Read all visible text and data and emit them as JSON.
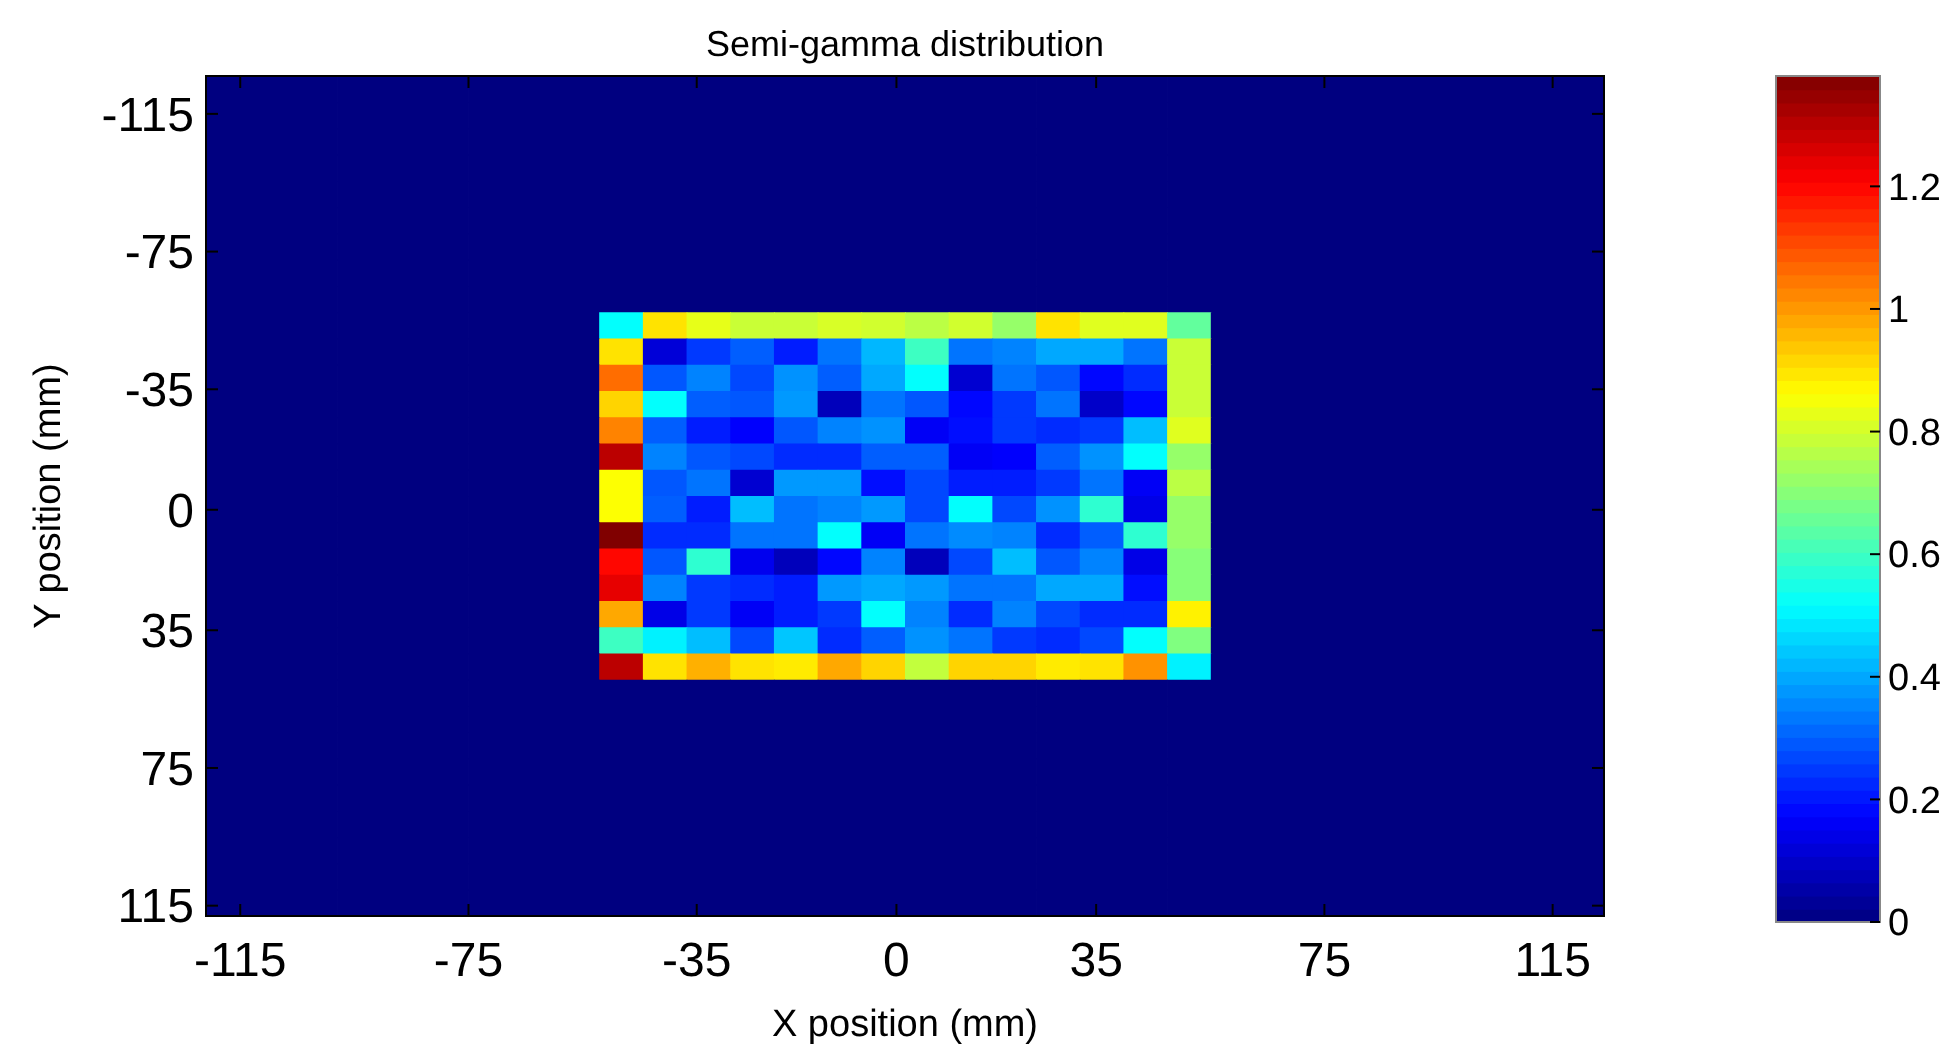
{
  "chart_data": {
    "type": "heatmap",
    "title": "Semi-gamma distribution",
    "xlabel": "X position (mm)",
    "ylabel": "Y position (mm)",
    "xlim": [
      -121,
      124
    ],
    "ylim": [
      118,
      -126
    ],
    "xticks": [
      -115,
      -75,
      -35,
      0,
      35,
      75,
      115
    ],
    "yticks": [
      -115,
      -75,
      -35,
      0,
      35,
      75,
      115
    ],
    "clim": [
      0,
      1.38
    ],
    "cticks": [
      0,
      0.2,
      0.4,
      0.6,
      0.8,
      1,
      1.2
    ],
    "cells": [
      [
        0,
        0,
        0,
        0,
        0,
        0,
        0,
        0,
        0,
        0,
        0,
        0,
        0,
        0,
        0,
        0,
        0,
        0,
        0,
        0,
        0,
        0,
        0,
        0,
        0,
        0,
        0,
        0,
        0,
        0,
        0,
        0
      ],
      [
        0,
        0,
        0,
        0,
        0,
        0,
        0,
        0,
        0,
        0,
        0,
        0,
        0,
        0,
        0,
        0,
        0,
        0,
        0,
        0,
        0,
        0,
        0,
        0,
        0,
        0,
        0,
        0,
        0,
        0,
        0,
        0
      ],
      [
        0,
        0,
        0,
        0,
        0,
        0,
        0,
        0,
        0,
        0,
        0,
        0,
        0,
        0,
        0,
        0,
        0,
        0,
        0,
        0,
        0,
        0,
        0,
        0,
        0,
        0,
        0,
        0,
        0,
        0,
        0,
        0
      ],
      [
        0,
        0,
        0,
        0,
        0,
        0,
        0,
        0,
        0,
        0,
        0,
        0,
        0,
        0,
        0,
        0,
        0,
        0,
        0,
        0,
        0,
        0,
        0,
        0,
        0,
        0,
        0,
        0,
        0,
        0,
        0,
        0
      ],
      [
        0,
        0,
        0,
        0,
        0,
        0,
        0,
        0,
        0,
        0,
        0,
        0,
        0,
        0,
        0,
        0,
        0,
        0,
        0,
        0,
        0,
        0,
        0,
        0,
        0,
        0,
        0,
        0,
        0,
        0,
        0,
        0
      ],
      [
        0,
        0,
        0,
        0,
        0,
        0,
        0,
        0,
        0,
        0,
        0,
        0,
        0,
        0,
        0,
        0,
        0,
        0,
        0,
        0,
        0,
        0,
        0,
        0,
        0,
        0,
        0,
        0,
        0,
        0,
        0,
        0
      ],
      [
        0,
        0,
        0,
        0,
        0,
        0,
        0,
        0,
        0,
        0,
        0,
        0,
        0,
        0,
        0,
        0,
        0,
        0,
        0,
        0,
        0,
        0,
        0,
        0,
        0,
        0,
        0,
        0,
        0,
        0,
        0,
        0
      ],
      [
        0,
        0,
        0,
        0,
        0,
        0,
        0,
        0,
        0,
        0,
        0,
        0,
        0,
        0,
        0,
        0,
        0,
        0,
        0,
        0,
        0,
        0,
        0,
        0,
        0,
        0,
        0,
        0,
        0,
        0,
        0,
        0
      ],
      [
        0,
        0,
        0,
        0,
        0,
        0,
        0,
        0,
        0,
        0,
        0,
        0,
        0,
        0,
        0,
        0,
        0,
        0,
        0,
        0,
        0,
        0,
        0,
        0,
        0,
        0,
        0,
        0,
        0,
        0,
        0,
        0
      ],
      [
        0,
        0,
        0,
        0,
        0,
        0,
        0,
        0,
        0,
        0.52,
        0.9,
        0.83,
        0.79,
        0.79,
        0.81,
        0.8,
        0.77,
        0.8,
        0.72,
        0.9,
        0.82,
        0.82,
        0.65,
        0,
        0,
        0,
        0,
        0,
        0,
        0,
        0,
        0
      ],
      [
        0,
        0,
        0,
        0,
        0,
        0,
        0,
        0,
        0,
        0.9,
        0.12,
        0.25,
        0.3,
        0.21,
        0.33,
        0.42,
        0.6,
        0.33,
        0.35,
        0.4,
        0.4,
        0.33,
        0.79,
        0,
        0,
        0,
        0,
        0,
        0,
        0,
        0,
        0
      ],
      [
        0,
        0,
        0,
        0,
        0,
        0,
        0,
        0,
        0,
        1.06,
        0.29,
        0.35,
        0.27,
        0.37,
        0.3,
        0.4,
        0.52,
        0.11,
        0.33,
        0.29,
        0.18,
        0.23,
        0.79,
        0,
        0,
        0,
        0,
        0,
        0,
        0,
        0,
        0
      ],
      [
        0,
        0,
        0,
        0,
        0,
        0,
        0,
        0,
        0,
        0.92,
        0.52,
        0.3,
        0.29,
        0.38,
        0.08,
        0.33,
        0.29,
        0.18,
        0.25,
        0.33,
        0.1,
        0.18,
        0.79,
        0,
        0,
        0,
        0,
        0,
        0,
        0,
        0,
        0
      ],
      [
        0,
        0,
        0,
        0,
        0,
        0,
        0,
        0,
        0,
        1.03,
        0.3,
        0.21,
        0.17,
        0.29,
        0.35,
        0.37,
        0.16,
        0.19,
        0.25,
        0.23,
        0.25,
        0.43,
        0.82,
        0,
        0,
        0,
        0,
        0,
        0,
        0,
        0,
        0
      ],
      [
        0,
        0,
        0,
        0,
        0,
        0,
        0,
        0,
        0,
        1.3,
        0.35,
        0.29,
        0.27,
        0.23,
        0.23,
        0.3,
        0.3,
        0.16,
        0.17,
        0.3,
        0.37,
        0.52,
        0.72,
        0,
        0,
        0,
        0,
        0,
        0,
        0,
        0,
        0
      ],
      [
        0,
        0,
        0,
        0,
        0,
        0,
        0,
        0,
        0,
        0.86,
        0.29,
        0.33,
        0.11,
        0.38,
        0.38,
        0.19,
        0.27,
        0.21,
        0.21,
        0.25,
        0.33,
        0.16,
        0.77,
        0,
        0,
        0,
        0,
        0,
        0,
        0,
        0,
        0
      ],
      [
        0,
        0,
        0,
        0,
        0,
        0,
        0,
        0,
        0,
        0.86,
        0.3,
        0.21,
        0.43,
        0.33,
        0.35,
        0.38,
        0.27,
        0.52,
        0.27,
        0.37,
        0.58,
        0.14,
        0.72,
        0,
        0,
        0,
        0,
        0,
        0,
        0,
        0,
        0
      ],
      [
        0,
        0,
        0,
        0,
        0,
        0,
        0,
        0,
        0,
        1.38,
        0.23,
        0.23,
        0.33,
        0.33,
        0.52,
        0.16,
        0.33,
        0.36,
        0.35,
        0.23,
        0.3,
        0.58,
        0.72,
        0,
        0,
        0,
        0,
        0,
        0,
        0,
        0,
        0
      ],
      [
        0,
        0,
        0,
        0,
        0,
        0,
        0,
        0,
        0,
        1.2,
        0.29,
        0.58,
        0.15,
        0.08,
        0.18,
        0.35,
        0.08,
        0.27,
        0.43,
        0.29,
        0.35,
        0.14,
        0.7,
        0,
        0,
        0,
        0,
        0,
        0,
        0,
        0,
        0
      ],
      [
        0,
        0,
        0,
        0,
        0,
        0,
        0,
        0,
        0,
        1.24,
        0.35,
        0.25,
        0.23,
        0.21,
        0.38,
        0.4,
        0.38,
        0.33,
        0.33,
        0.4,
        0.4,
        0.19,
        0.7,
        0,
        0,
        0,
        0,
        0,
        0,
        0,
        0,
        0
      ],
      [
        0,
        0,
        0,
        0,
        0,
        0,
        0,
        0,
        0,
        0.98,
        0.14,
        0.25,
        0.16,
        0.21,
        0.25,
        0.52,
        0.35,
        0.23,
        0.35,
        0.27,
        0.23,
        0.23,
        0.88,
        0,
        0,
        0,
        0,
        0,
        0,
        0,
        0,
        0
      ],
      [
        0,
        0,
        0,
        0,
        0,
        0,
        0,
        0,
        0,
        0.6,
        0.5,
        0.43,
        0.27,
        0.44,
        0.23,
        0.3,
        0.37,
        0.33,
        0.25,
        0.23,
        0.27,
        0.52,
        0.69,
        0,
        0,
        0,
        0,
        0,
        0,
        0,
        0,
        0
      ],
      [
        0,
        0,
        0,
        0,
        0,
        0,
        0,
        0,
        0,
        1.3,
        0.9,
        0.97,
        0.9,
        0.89,
        0.98,
        0.92,
        0.78,
        0.92,
        0.92,
        0.89,
        0.9,
        1.01,
        0.5,
        0,
        0,
        0,
        0,
        0,
        0,
        0,
        0,
        0
      ],
      [
        0,
        0,
        0,
        0,
        0,
        0,
        0,
        0,
        0,
        0,
        0,
        0,
        0,
        0,
        0,
        0,
        0,
        0,
        0,
        0,
        0,
        0,
        0,
        0,
        0,
        0,
        0,
        0,
        0,
        0,
        0,
        0
      ],
      [
        0,
        0,
        0,
        0,
        0,
        0,
        0,
        0,
        0,
        0,
        0,
        0,
        0,
        0,
        0,
        0,
        0,
        0,
        0,
        0,
        0,
        0,
        0,
        0,
        0,
        0,
        0,
        0,
        0,
        0,
        0,
        0
      ],
      [
        0,
        0,
        0,
        0,
        0,
        0,
        0,
        0,
        0,
        0,
        0,
        0,
        0,
        0,
        0,
        0,
        0,
        0,
        0,
        0,
        0,
        0,
        0,
        0,
        0,
        0,
        0,
        0,
        0,
        0,
        0,
        0
      ],
      [
        0,
        0,
        0,
        0,
        0,
        0,
        0,
        0,
        0,
        0,
        0,
        0,
        0,
        0,
        0,
        0,
        0,
        0,
        0,
        0,
        0,
        0,
        0,
        0,
        0,
        0,
        0,
        0,
        0,
        0,
        0,
        0
      ],
      [
        0,
        0,
        0,
        0,
        0,
        0,
        0,
        0,
        0,
        0,
        0,
        0,
        0,
        0,
        0,
        0,
        0,
        0,
        0,
        0,
        0,
        0,
        0,
        0,
        0,
        0,
        0,
        0,
        0,
        0,
        0,
        0
      ],
      [
        0,
        0,
        0,
        0,
        0,
        0,
        0,
        0,
        0,
        0,
        0,
        0,
        0,
        0,
        0,
        0,
        0,
        0,
        0,
        0,
        0,
        0,
        0,
        0,
        0,
        0,
        0,
        0,
        0,
        0,
        0,
        0
      ],
      [
        0,
        0,
        0,
        0,
        0,
        0,
        0,
        0,
        0,
        0,
        0,
        0,
        0,
        0,
        0,
        0,
        0,
        0,
        0,
        0,
        0,
        0,
        0,
        0,
        0,
        0,
        0,
        0,
        0,
        0,
        0,
        0
      ],
      [
        0,
        0,
        0,
        0,
        0,
        0,
        0,
        0,
        0,
        0,
        0,
        0,
        0,
        0,
        0,
        0,
        0,
        0,
        0,
        0,
        0,
        0,
        0,
        0,
        0,
        0,
        0,
        0,
        0,
        0,
        0,
        0
      ],
      [
        0,
        0,
        0,
        0,
        0,
        0,
        0,
        0,
        0,
        0,
        0,
        0,
        0,
        0,
        0,
        0,
        0,
        0,
        0,
        0,
        0,
        0,
        0,
        0,
        0,
        0,
        0,
        0,
        0,
        0,
        0,
        0
      ]
    ]
  }
}
